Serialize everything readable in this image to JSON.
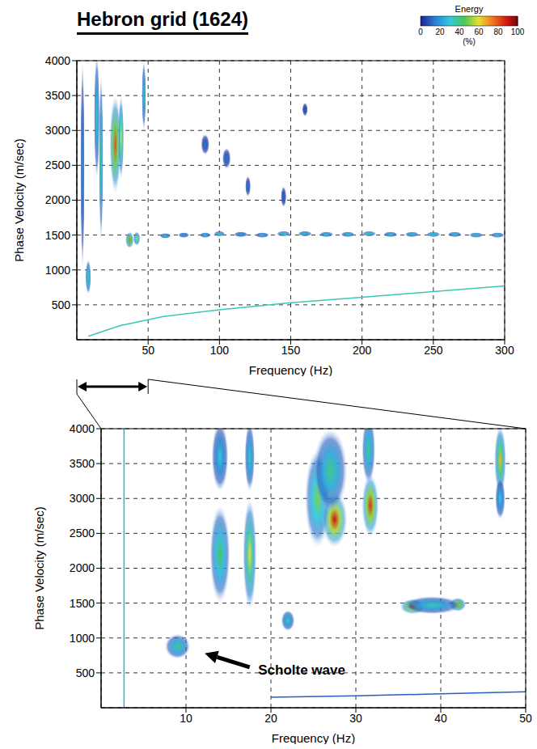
{
  "title": "Hebron grid (1624)",
  "colorbar": {
    "label": "Energy",
    "unit_label": "(%)",
    "range": [
      0,
      100
    ],
    "ticks": [
      0,
      20,
      40,
      60,
      80,
      100
    ]
  },
  "chart_data": [
    {
      "type": "heatmap",
      "xlabel": "Frequency (Hz)",
      "ylabel": "Phase Velocity (m/sec)",
      "xlim": [
        0,
        300
      ],
      "ylim": [
        0,
        4000
      ],
      "xticks": [
        50,
        100,
        150,
        200,
        250,
        300
      ],
      "yticks": [
        500,
        1000,
        1500,
        2000,
        2500,
        3000,
        3500,
        4000
      ],
      "grid": true,
      "peaks": {
        "x": [
          4,
          8,
          14,
          17,
          27,
          31,
          37,
          42,
          47,
          62,
          75,
          90,
          100,
          115,
          130,
          145,
          160,
          175,
          190,
          205,
          220,
          235,
          250,
          265,
          280,
          295,
          90,
          105,
          120,
          145,
          160
        ],
        "y": [
          2500,
          900,
          3200,
          2600,
          2800,
          2900,
          1430,
          1450,
          3500,
          1490,
          1500,
          1500,
          1520,
          1510,
          1500,
          1520,
          1520,
          1510,
          1510,
          1520,
          1510,
          1510,
          1510,
          1510,
          1500,
          1500,
          2800,
          2600,
          2200,
          2050,
          3300
        ],
        "half_width": [
          1.5,
          2,
          2,
          1.5,
          4,
          2,
          3,
          2.5,
          1.5,
          4,
          4,
          4,
          4,
          5,
          5,
          5,
          5,
          5,
          5,
          5,
          5,
          5,
          5,
          5,
          5,
          5,
          3,
          3,
          2,
          2,
          2
        ],
        "half_height": [
          1500,
          250,
          900,
          1200,
          700,
          600,
          120,
          100,
          500,
          40,
          40,
          40,
          40,
          40,
          40,
          40,
          40,
          40,
          40,
          40,
          40,
          40,
          40,
          40,
          40,
          40,
          150,
          150,
          150,
          150,
          100
        ],
        "energy": [
          20,
          40,
          35,
          40,
          80,
          60,
          75,
          55,
          35,
          30,
          25,
          30,
          40,
          25,
          30,
          40,
          35,
          35,
          35,
          40,
          35,
          35,
          40,
          35,
          35,
          35,
          15,
          15,
          15,
          12,
          10
        ]
      },
      "curves": [
        {
          "x": [
            8,
            30,
            60,
            100,
            150,
            200,
            250,
            300
          ],
          "y": [
            50,
            200,
            330,
            430,
            530,
            610,
            690,
            770
          ],
          "energy": 35
        }
      ]
    },
    {
      "type": "heatmap",
      "xlabel": "Frequency (Hz)",
      "ylabel": "Phase Velocity (m/sec)",
      "xlim": [
        0,
        50
      ],
      "ylim": [
        0,
        4000
      ],
      "xticks": [
        10,
        20,
        30,
        40,
        50
      ],
      "yticks": [
        500,
        1000,
        1500,
        2000,
        2500,
        3000,
        3500,
        4000
      ],
      "grid": true,
      "peaks": {
        "x": [
          9,
          14,
          14,
          17.5,
          17.5,
          22,
          25.5,
          27.5,
          27,
          31.7,
          31.5,
          36.7,
          42,
          39,
          47,
          47
        ],
        "y": [
          880,
          2200,
          3600,
          2200,
          3600,
          1250,
          3000,
          2700,
          3400,
          2900,
          3700,
          1450,
          1480,
          1470,
          3550,
          3000
        ],
        "half_width": [
          1.5,
          1.2,
          1,
          0.8,
          0.6,
          0.8,
          1.5,
          1.5,
          2,
          1,
          0.8,
          1.5,
          1,
          3.5,
          0.7,
          0.6
        ],
        "half_height": [
          180,
          700,
          500,
          800,
          500,
          150,
          700,
          400,
          600,
          450,
          500,
          110,
          100,
          130,
          500,
          300
        ],
        "energy": [
          40,
          45,
          30,
          60,
          35,
          35,
          50,
          90,
          40,
          85,
          40,
          85,
          70,
          35,
          65,
          30
        ]
      },
      "curves": [
        {
          "x": [
            2.7,
            2.7
          ],
          "y": [
            0,
            4000
          ],
          "energy": 25
        },
        {
          "x": [
            20,
            30,
            40,
            50
          ],
          "y": [
            150,
            170,
            200,
            230
          ],
          "energy": 10
        }
      ],
      "annotations": [
        {
          "text": "Scholte wave",
          "x": 18.5,
          "y": 480,
          "arrow_from_x": 17.5,
          "arrow_from_y": 580,
          "arrow_to_x": 12.2,
          "arrow_to_y": 780
        }
      ]
    }
  ]
}
